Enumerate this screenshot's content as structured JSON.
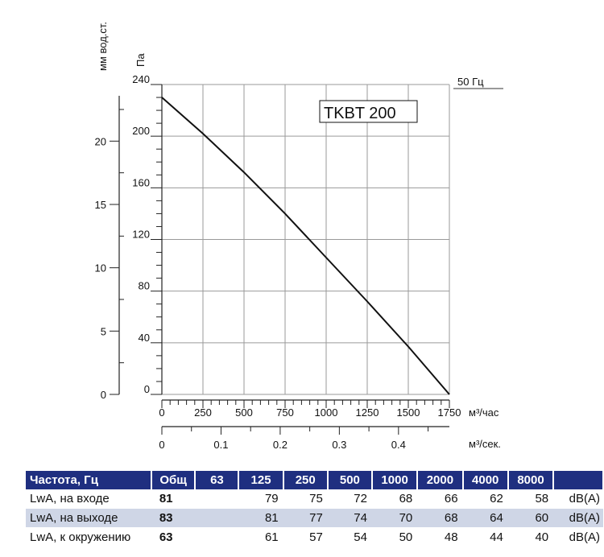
{
  "chart_data": {
    "type": "line",
    "title": "TKBT 200",
    "frequency_label": "50 Гц",
    "y_axis_left": {
      "label": "мм вод.ст.",
      "ticks": [
        "0",
        "5",
        "10",
        "15",
        "20"
      ],
      "range": [
        0,
        24.47
      ]
    },
    "y_axis_right": {
      "label": "Па",
      "ticks": [
        "0",
        "40",
        "80",
        "120",
        "160",
        "200",
        "240"
      ],
      "range": [
        0,
        240
      ]
    },
    "x_axis_main": {
      "label": "м³/час",
      "ticks": [
        "0",
        "250",
        "500",
        "750",
        "1000",
        "1250",
        "1500",
        "1750"
      ],
      "range": [
        0,
        1750
      ]
    },
    "x_axis_secondary": {
      "label": "м³/сек.",
      "ticks": [
        "0",
        "0.1",
        "0.2",
        "0.3",
        "0.4"
      ],
      "range": [
        0,
        0.486
      ]
    },
    "grid": true,
    "series": [
      {
        "x": [
          0,
          250,
          500,
          750,
          1000,
          1250,
          1500,
          1750
        ],
        "y": [
          230,
          202,
          172,
          140,
          106,
          72,
          37,
          0
        ]
      }
    ]
  },
  "table": {
    "headers": [
      "Частота, Гц",
      "Общ",
      "63",
      "125",
      "250",
      "500",
      "1000",
      "2000",
      "4000",
      "8000",
      ""
    ],
    "rows": [
      {
        "label": "LwA, на входе",
        "total": "81",
        "values": [
          "",
          "79",
          "75",
          "72",
          "68",
          "66",
          "62",
          "58"
        ],
        "unit": "dB(A)"
      },
      {
        "label": "LwA, на выходе",
        "total": "83",
        "values": [
          "",
          "81",
          "77",
          "74",
          "70",
          "68",
          "64",
          "60"
        ],
        "unit": "dB(A)"
      },
      {
        "label": "LwA, к окружению",
        "total": "63",
        "values": [
          "",
          "61",
          "57",
          "54",
          "50",
          "48",
          "44",
          "40"
        ],
        "unit": "dB(A)"
      }
    ]
  }
}
